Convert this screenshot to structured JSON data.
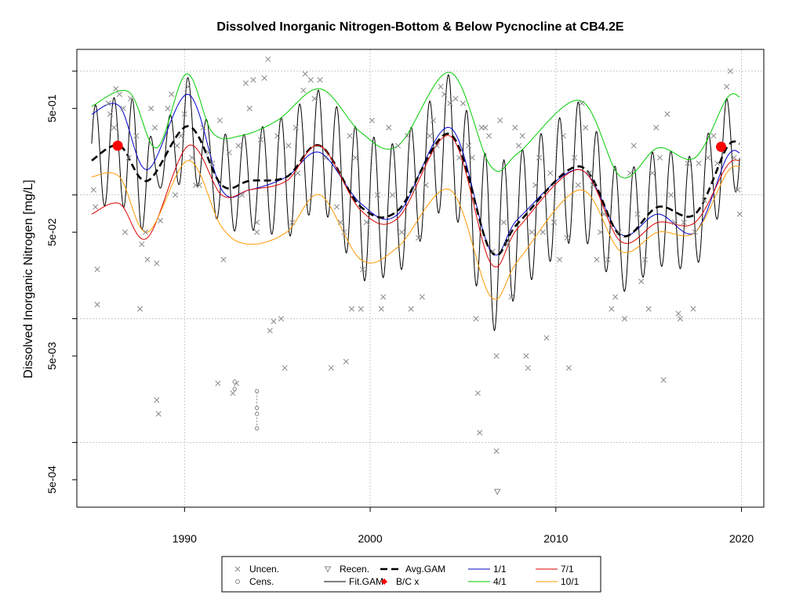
{
  "chart_data": {
    "type": "line",
    "title": "Dissolved Inorganic Nitrogen-Bottom & Below Pycnocline at CB4.2E",
    "xlabel": "",
    "ylabel": "Dissolved Inorganic Nitrogen [mg/L]",
    "x_range": [
      1984.2,
      2021.2
    ],
    "y_scale": "log10",
    "y_range": [
      0.0003,
      1.5
    ],
    "x_ticks": [
      1990,
      2000,
      2010,
      2020
    ],
    "x_tick_labels": [
      "1990",
      "2000",
      "2010",
      "2020"
    ],
    "y_ticks": [
      0.0005,
      0.005,
      0.05,
      0.5
    ],
    "y_tick_labels": [
      "5e-04",
      "5e-03",
      "5e-02",
      "5e-01"
    ],
    "grid": true,
    "legend_position": "bottom",
    "legend": [
      {
        "label": "Uncen.",
        "symbol": "x",
        "color": "#888888"
      },
      {
        "label": "Recen.",
        "symbol": "triangle-down",
        "color": "#888888"
      },
      {
        "label": "Avg.GAM",
        "symbol": "dashed-line",
        "color": "#000000"
      },
      {
        "label": "1/1",
        "symbol": "line",
        "color": "#0000cc"
      },
      {
        "label": "7/1",
        "symbol": "line",
        "color": "#dd0000"
      },
      {
        "label": "Cens.",
        "symbol": "circle",
        "color": "#888888"
      },
      {
        "label": "Fit.GAM",
        "symbol": "line",
        "color": "#000000"
      },
      {
        "label": "B/C x",
        "symbol": "diamond",
        "color": "#ff0000"
      },
      {
        "label": "4/1",
        "symbol": "line",
        "color": "#00cc00"
      },
      {
        "label": "10/1",
        "symbol": "line",
        "color": "#ff9900"
      }
    ],
    "series": [
      {
        "name": "4/1",
        "color": "#00cc00",
        "x": [
          1985.0,
          1987.0,
          1988.5,
          1990.1,
          1991.5,
          1993.0,
          1995.0,
          1997.3,
          1999.5,
          2001.5,
          2004.3,
          2006.5,
          2008.0,
          2011.3,
          2013.5,
          2015.5,
          2017.5,
          2019.2,
          2019.9
        ],
        "y": [
          0.52,
          0.68,
          0.24,
          0.95,
          0.32,
          0.3,
          0.4,
          0.72,
          0.32,
          0.25,
          0.98,
          0.17,
          0.22,
          0.58,
          0.14,
          0.24,
          0.2,
          0.6,
          0.62
        ]
      },
      {
        "name": "1/1",
        "color": "#0000cc",
        "x": [
          1985.0,
          1986.5,
          1988.0,
          1990.2,
          1992.0,
          1993.5,
          1995.5,
          1997.3,
          1999.5,
          2001.5,
          2004.3,
          2006.5,
          2008.0,
          2011.3,
          2013.5,
          2015.5,
          2017.5,
          2019.2,
          2019.9
        ],
        "y": [
          0.45,
          0.52,
          0.16,
          0.65,
          0.11,
          0.11,
          0.14,
          0.22,
          0.085,
          0.07,
          0.35,
          0.035,
          0.065,
          0.16,
          0.048,
          0.07,
          0.05,
          0.2,
          0.22
        ]
      },
      {
        "name": "Avg.GAM",
        "color": "#000000",
        "dashed": true,
        "x": [
          1985.0,
          1986.5,
          1988.0,
          1990.2,
          1992.0,
          1993.5,
          1995.5,
          1997.3,
          1999.5,
          2001.5,
          2004.3,
          2006.5,
          2008.0,
          2011.3,
          2013.5,
          2015.5,
          2017.5,
          2019.2,
          2019.9
        ],
        "y": [
          0.19,
          0.25,
          0.13,
          0.36,
          0.12,
          0.13,
          0.14,
          0.25,
          0.08,
          0.075,
          0.31,
          0.035,
          0.06,
          0.17,
          0.047,
          0.08,
          0.07,
          0.24,
          0.26
        ]
      },
      {
        "name": "7/1",
        "color": "#dd0000",
        "x": [
          1985.0,
          1986.5,
          1988.0,
          1990.2,
          1992.0,
          1993.5,
          1995.5,
          1997.3,
          1999.5,
          2001.5,
          2004.3,
          2006.5,
          2008.0,
          2011.3,
          2013.5,
          2015.5,
          2017.5,
          2019.2,
          2019.9
        ],
        "y": [
          0.07,
          0.085,
          0.045,
          0.25,
          0.1,
          0.11,
          0.13,
          0.25,
          0.075,
          0.065,
          0.3,
          0.028,
          0.055,
          0.16,
          0.042,
          0.06,
          0.06,
          0.17,
          0.19
        ]
      },
      {
        "name": "10/1",
        "color": "#ff9900",
        "x": [
          1985.0,
          1986.5,
          1988.0,
          1990.2,
          1992.0,
          1993.5,
          1995.5,
          1997.3,
          1999.5,
          2001.5,
          2004.3,
          2006.5,
          2008.0,
          2011.3,
          2013.5,
          2015.5,
          2017.5,
          2019.2,
          2019.9
        ],
        "y": [
          0.14,
          0.14,
          0.05,
          0.19,
          0.055,
          0.04,
          0.05,
          0.1,
          0.03,
          0.038,
          0.11,
          0.015,
          0.03,
          0.11,
          0.035,
          0.05,
          0.05,
          0.15,
          0.17
        ]
      }
    ],
    "fit_gam": {
      "name": "Fit.GAM",
      "color": "#000000",
      "x_start": 1985.0,
      "x_end": 2019.9,
      "period_years": 1.0,
      "phase_year_of_peak": 0.2
    },
    "bc_x": {
      "name": "B/C x",
      "color": "#ff0000",
      "x": [
        1986.4,
        2018.9
      ],
      "y": [
        0.25,
        0.245
      ]
    },
    "uncensored": [
      [
        1985.1,
        0.11
      ],
      [
        1985.2,
        0.08
      ],
      [
        1985.3,
        0.025
      ],
      [
        1985.3,
        0.013
      ],
      [
        1985.9,
        0.55
      ],
      [
        1986.0,
        0.45
      ],
      [
        1986.2,
        0.35
      ],
      [
        1986.3,
        0.72
      ],
      [
        1986.5,
        0.65
      ],
      [
        1986.7,
        0.5
      ],
      [
        1986.8,
        0.05
      ],
      [
        1987.0,
        0.2
      ],
      [
        1987.1,
        0.6
      ],
      [
        1987.4,
        0.3
      ],
      [
        1987.6,
        0.012
      ],
      [
        1987.7,
        0.04
      ],
      [
        1987.9,
        0.05
      ],
      [
        1988.0,
        0.03
      ],
      [
        1988.2,
        0.5
      ],
      [
        1988.4,
        0.35
      ],
      [
        1988.5,
        0.028
      ],
      [
        1988.5,
        0.0022
      ],
      [
        1988.6,
        0.0017
      ],
      [
        1988.7,
        0.062
      ],
      [
        1989.1,
        0.5
      ],
      [
        1989.3,
        0.65
      ],
      [
        1989.5,
        0.1
      ],
      [
        1989.6,
        0.25
      ],
      [
        1989.8,
        0.3
      ],
      [
        1990.0,
        0.45
      ],
      [
        1990.2,
        0.75
      ],
      [
        1990.4,
        0.2
      ],
      [
        1990.6,
        0.12
      ],
      [
        1990.8,
        0.12
      ],
      [
        1991.0,
        0.35
      ],
      [
        1991.3,
        0.22
      ],
      [
        1991.5,
        0.18
      ],
      [
        1991.8,
        0.003
      ],
      [
        1991.9,
        0.4
      ],
      [
        1992.1,
        0.03
      ],
      [
        1992.4,
        0.22
      ],
      [
        1992.6,
        0.0025
      ],
      [
        1992.8,
        0.003
      ],
      [
        1992.9,
        0.25
      ],
      [
        1993.1,
        0.1
      ],
      [
        1993.3,
        0.8
      ],
      [
        1993.5,
        0.5
      ],
      [
        1993.7,
        0.85
      ],
      [
        1993.9,
        0.06
      ],
      [
        1993.9,
        0.05
      ],
      [
        1994.1,
        0.28
      ],
      [
        1994.3,
        0.88
      ],
      [
        1994.5,
        1.25
      ],
      [
        1994.6,
        0.008
      ],
      [
        1994.8,
        0.0095
      ],
      [
        1995.0,
        0.3
      ],
      [
        1995.2,
        0.01
      ],
      [
        1995.4,
        0.004
      ],
      [
        1995.6,
        0.25
      ],
      [
        1995.8,
        0.06
      ],
      [
        1996.0,
        0.35
      ],
      [
        1996.1,
        0.15
      ],
      [
        1996.4,
        0.7
      ],
      [
        1996.5,
        0.95
      ],
      [
        1996.8,
        0.85
      ],
      [
        1997.0,
        0.6
      ],
      [
        1997.3,
        0.85
      ],
      [
        1997.6,
        0.2
      ],
      [
        1997.9,
        0.004
      ],
      [
        1998.2,
        0.08
      ],
      [
        1998.4,
        0.06
      ],
      [
        1998.6,
        0.05
      ],
      [
        1998.7,
        0.0045
      ],
      [
        1998.9,
        0.3
      ],
      [
        1999.0,
        0.012
      ],
      [
        1999.2,
        0.2
      ],
      [
        1999.5,
        0.012
      ],
      [
        1999.6,
        0.025
      ],
      [
        1999.8,
        0.06
      ],
      [
        2000.1,
        0.4
      ],
      [
        2000.4,
        0.1
      ],
      [
        2000.6,
        0.012
      ],
      [
        2000.7,
        0.015
      ],
      [
        2001.0,
        0.35
      ],
      [
        2001.2,
        0.1
      ],
      [
        2001.5,
        0.25
      ],
      [
        2001.7,
        0.05
      ],
      [
        2002.0,
        0.3
      ],
      [
        2002.2,
        0.012
      ],
      [
        2002.4,
        0.11
      ],
      [
        2002.6,
        0.045
      ],
      [
        2002.8,
        0.015
      ],
      [
        2003.0,
        0.12
      ],
      [
        2003.2,
        0.3
      ],
      [
        2003.4,
        0.4
      ],
      [
        2003.6,
        0.25
      ],
      [
        2003.8,
        0.75
      ],
      [
        2004.0,
        0.65
      ],
      [
        2004.3,
        0.55
      ],
      [
        2004.6,
        0.6
      ],
      [
        2004.8,
        0.2
      ],
      [
        2005.0,
        0.55
      ],
      [
        2005.3,
        0.25
      ],
      [
        2005.5,
        0.2
      ],
      [
        2005.7,
        0.01
      ],
      [
        2005.8,
        0.0025
      ],
      [
        2005.9,
        0.0012
      ],
      [
        2006.0,
        0.35
      ],
      [
        2006.2,
        0.35
      ],
      [
        2006.4,
        0.3
      ],
      [
        2006.6,
        0.035
      ],
      [
        2006.8,
        0.005
      ],
      [
        2006.8,
        0.00085
      ],
      [
        2007.0,
        0.4
      ],
      [
        2007.2,
        0.06
      ],
      [
        2007.4,
        0.04
      ],
      [
        2007.6,
        0.015
      ],
      [
        2007.8,
        0.35
      ],
      [
        2008.0,
        0.25
      ],
      [
        2008.2,
        0.3
      ],
      [
        2008.4,
        0.005
      ],
      [
        2008.5,
        0.004
      ],
      [
        2008.7,
        0.05
      ],
      [
        2008.9,
        0.12
      ],
      [
        2009.1,
        0.2
      ],
      [
        2009.3,
        0.05
      ],
      [
        2009.5,
        0.007
      ],
      [
        2009.7,
        0.15
      ],
      [
        2009.9,
        0.06
      ],
      [
        2010.2,
        0.03
      ],
      [
        2010.4,
        0.3
      ],
      [
        2010.6,
        0.045
      ],
      [
        2010.7,
        0.004
      ],
      [
        2011.0,
        0.2
      ],
      [
        2011.2,
        0.12
      ],
      [
        2011.4,
        0.55
      ],
      [
        2011.6,
        0.35
      ],
      [
        2011.8,
        0.15
      ],
      [
        2012.0,
        0.12
      ],
      [
        2012.2,
        0.03
      ],
      [
        2012.4,
        0.05
      ],
      [
        2012.6,
        0.07
      ],
      [
        2012.8,
        0.03
      ],
      [
        2013.0,
        0.012
      ],
      [
        2013.2,
        0.015
      ],
      [
        2013.4,
        0.05
      ],
      [
        2013.7,
        0.01
      ],
      [
        2014.0,
        0.15
      ],
      [
        2014.2,
        0.25
      ],
      [
        2014.4,
        0.07
      ],
      [
        2014.6,
        0.02
      ],
      [
        2014.8,
        0.03
      ],
      [
        2015.0,
        0.012
      ],
      [
        2015.2,
        0.15
      ],
      [
        2015.4,
        0.35
      ],
      [
        2015.6,
        0.2
      ],
      [
        2015.8,
        0.0032
      ],
      [
        2016.0,
        0.45
      ],
      [
        2016.2,
        0.1
      ],
      [
        2016.4,
        0.06
      ],
      [
        2016.6,
        0.011
      ],
      [
        2016.7,
        0.01
      ],
      [
        2016.9,
        0.06
      ],
      [
        2017.1,
        0.18
      ],
      [
        2017.4,
        0.012
      ],
      [
        2017.5,
        0.05
      ],
      [
        2017.7,
        0.18
      ],
      [
        2018.0,
        0.09
      ],
      [
        2018.2,
        0.2
      ],
      [
        2018.5,
        0.3
      ],
      [
        2018.7,
        0.18
      ],
      [
        2019.0,
        0.25
      ],
      [
        2019.2,
        0.75
      ],
      [
        2019.4,
        1.0
      ],
      [
        2019.6,
        0.2
      ],
      [
        2019.8,
        0.11
      ],
      [
        2019.9,
        0.07
      ]
    ],
    "censored": [
      {
        "x": 1992.7,
        "y": [
          0.0027,
          0.0031
        ]
      },
      {
        "x": 1993.9,
        "y": [
          0.0013,
          0.0017,
          0.0019,
          0.0026
        ]
      }
    ],
    "recensored": [
      [
        2006.85,
        0.0004
      ]
    ]
  }
}
